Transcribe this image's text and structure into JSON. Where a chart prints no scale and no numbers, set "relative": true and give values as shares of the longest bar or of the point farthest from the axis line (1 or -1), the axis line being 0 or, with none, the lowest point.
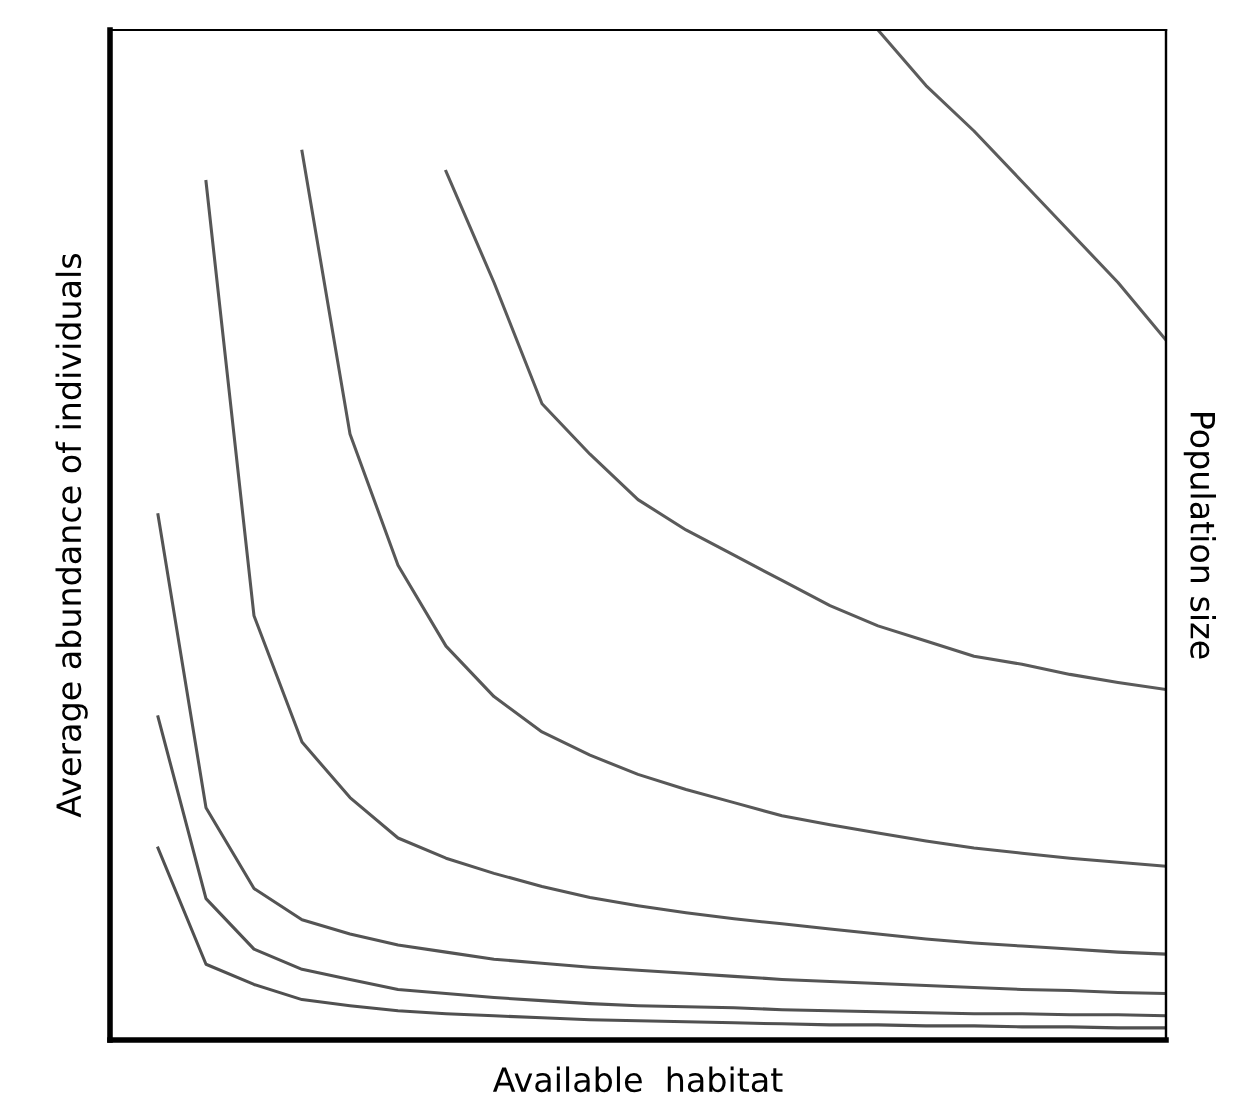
{
  "chart_data": {
    "type": "line",
    "relative": true,
    "xlabel": "Available  habitat",
    "ylabel": "Average abundance of individuals",
    "y2label": "Population size",
    "marker": "none",
    "line_style": "solid",
    "categories": [
      null,
      null,
      null,
      null,
      null,
      null,
      null,
      null,
      null,
      null,
      null,
      null,
      null,
      null,
      null,
      null,
      null,
      null,
      null,
      null,
      null,
      null,
      null
    ],
    "series": [
      {
        "color": "#505050",
        "values": [
          null,
          0.19,
          0.075,
          0.055,
          0.04,
          0.034,
          0.029,
          0.026,
          0.024,
          0.022,
          0.02,
          0.019,
          0.018,
          0.017,
          0.016,
          0.015,
          0.015,
          0.014,
          0.014,
          0.013,
          0.013,
          0.012,
          0.012
        ]
      },
      {
        "color": "#525252",
        "values": [
          null,
          0.32,
          0.14,
          0.09,
          0.07,
          0.06,
          0.05,
          0.046,
          0.042,
          0.039,
          0.036,
          0.034,
          0.033,
          0.032,
          0.03,
          0.029,
          0.028,
          0.027,
          0.026,
          0.026,
          0.025,
          0.025,
          0.024
        ]
      },
      {
        "color": "#545454",
        "values": [
          null,
          0.52,
          0.23,
          0.15,
          0.119,
          0.105,
          0.094,
          0.087,
          0.08,
          0.076,
          0.072,
          0.069,
          0.066,
          0.063,
          0.06,
          0.058,
          0.056,
          0.054,
          0.052,
          0.05,
          0.049,
          0.047,
          0.046
        ]
      },
      {
        "color": "#565656",
        "values": [
          null,
          null,
          0.85,
          0.42,
          0.295,
          0.24,
          0.2,
          0.18,
          0.165,
          0.152,
          0.141,
          0.133,
          0.126,
          0.12,
          0.115,
          0.11,
          0.105,
          0.1,
          0.096,
          0.093,
          0.09,
          0.087,
          0.085
        ]
      },
      {
        "color": "#585858",
        "values": [
          null,
          null,
          null,
          null,
          0.88,
          0.6,
          0.47,
          0.39,
          0.34,
          0.305,
          0.282,
          0.263,
          0.248,
          0.235,
          0.222,
          0.213,
          0.205,
          0.197,
          0.19,
          0.185,
          0.18,
          0.176,
          0.172
        ]
      },
      {
        "color": "#5a5a5a",
        "values": [
          null,
          null,
          null,
          null,
          null,
          null,
          null,
          0.86,
          0.75,
          0.63,
          0.58,
          0.535,
          0.505,
          0.48,
          0.455,
          0.43,
          0.41,
          0.395,
          0.38,
          0.372,
          0.362,
          0.354,
          0.347
        ]
      },
      {
        "color": "#5c5c5c",
        "values": [
          null,
          null,
          null,
          null,
          null,
          null,
          null,
          null,
          null,
          null,
          null,
          null,
          null,
          null,
          null,
          null,
          1,
          0.945,
          0.9,
          0.85,
          0.8,
          0.75,
          0.693
        ]
      }
    ]
  }
}
